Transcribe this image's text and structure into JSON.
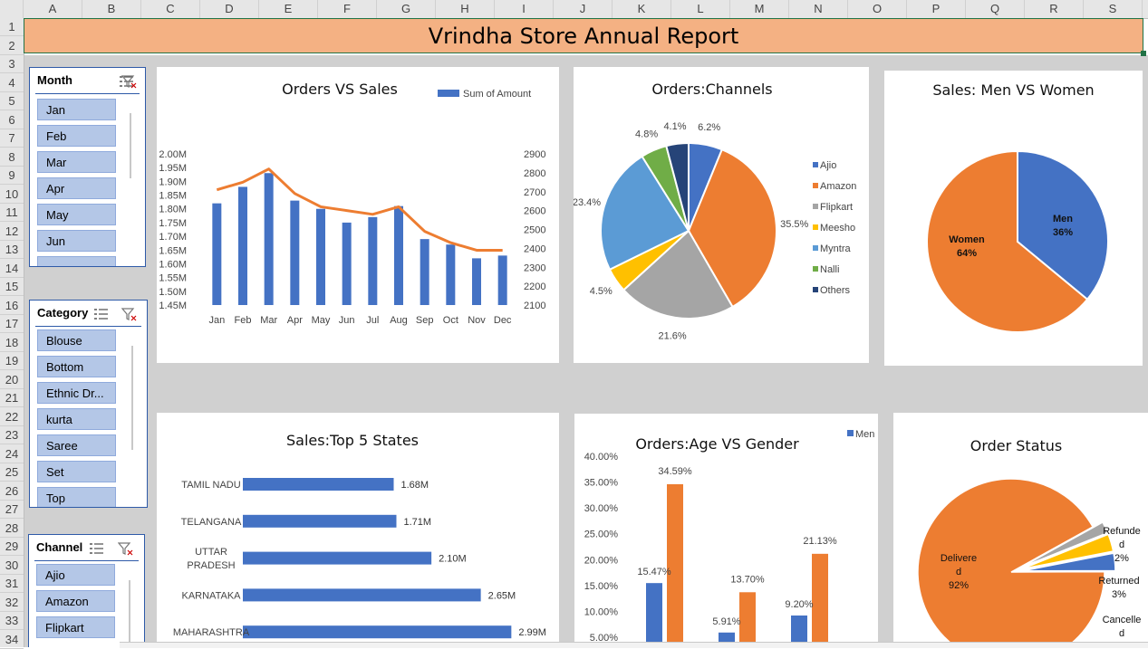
{
  "grid": {
    "columns": [
      "A",
      "B",
      "C",
      "D",
      "E",
      "F",
      "G",
      "H",
      "I",
      "J",
      "K",
      "L",
      "M",
      "N",
      "O",
      "P",
      "Q",
      "R",
      "S"
    ],
    "rows": [
      "1",
      "2",
      "3",
      "4",
      "5",
      "6",
      "7",
      "8",
      "9",
      "10",
      "11",
      "12",
      "13",
      "14",
      "15",
      "16",
      "17",
      "18",
      "19",
      "20",
      "21",
      "22",
      "23",
      "24",
      "25",
      "26",
      "27",
      "28",
      "29",
      "30",
      "31",
      "32",
      "33",
      "34"
    ]
  },
  "report_title": "Vrindha Store Annual Report",
  "slicers": [
    {
      "title": "Month",
      "items": [
        "Jan",
        "Feb",
        "Mar",
        "Apr",
        "May",
        "Jun"
      ]
    },
    {
      "title": "Category",
      "items": [
        "Blouse",
        "Bottom",
        "Ethnic Dr...",
        "kurta",
        "Saree",
        "Set",
        "Top"
      ]
    },
    {
      "title": "Channel",
      "items": [
        "Ajio",
        "Amazon",
        "Flipkart"
      ]
    }
  ],
  "chart_data": [
    {
      "type": "bar",
      "title": "Orders VS Sales",
      "categories": [
        "Jan",
        "Feb",
        "Mar",
        "Apr",
        "May",
        "Jun",
        "Jul",
        "Aug",
        "Sep",
        "Oct",
        "Nov",
        "Dec"
      ],
      "series": [
        {
          "name": "Sum of Amount",
          "type": "bar",
          "axis": "left",
          "color": "#4472c4",
          "values": [
            1.82,
            1.88,
            1.93,
            1.83,
            1.8,
            1.75,
            1.77,
            1.81,
            1.69,
            1.67,
            1.62,
            1.63
          ]
        },
        {
          "type": "line",
          "axis": "right",
          "color": "#ed7d31",
          "values": [
            2710,
            2750,
            2820,
            2690,
            2620,
            2600,
            2580,
            2620,
            2490,
            2430,
            2390,
            2390
          ]
        }
      ],
      "left_ticks": [
        "2.00M",
        "1.95M",
        "1.90M",
        "1.85M",
        "1.80M",
        "1.75M",
        "1.70M",
        "1.65M",
        "1.60M",
        "1.55M",
        "1.50M",
        "1.45M"
      ],
      "right_ticks": [
        "2900",
        "2800",
        "2700",
        "2600",
        "2500",
        "2400",
        "2300",
        "2200",
        "2100"
      ],
      "ylim_left": [
        1.45,
        2.0
      ],
      "ylim_right": [
        2100,
        2900
      ],
      "legend": "top-right"
    },
    {
      "type": "pie",
      "title": "Orders:Channels",
      "slices": [
        {
          "label": "Ajio",
          "value": 6.2,
          "text": "6.2%",
          "color": "#4472c4"
        },
        {
          "label": "Amazon",
          "value": 35.5,
          "text": "35.5%",
          "color": "#ed7d31"
        },
        {
          "label": "Flipkart",
          "value": 21.6,
          "text": "21.6%",
          "color": "#a5a5a5"
        },
        {
          "label": "Meesho",
          "value": 4.5,
          "text": "4.5%",
          "color": "#ffc000"
        },
        {
          "label": "Myntra",
          "value": 23.4,
          "text": "23.4%",
          "color": "#5b9bd5"
        },
        {
          "label": "Nalli",
          "value": 4.8,
          "text": "4.8%",
          "color": "#70ad47"
        },
        {
          "label": "Others",
          "value": 4.1,
          "text": "4.1%",
          "color": "#264478"
        }
      ],
      "legend": "right"
    },
    {
      "type": "pie",
      "title": "Sales: Men VS Women",
      "slices": [
        {
          "label": "Men",
          "value": 36,
          "text": "36%",
          "color": "#4472c4"
        },
        {
          "label": "Women",
          "value": 64,
          "text": "64%",
          "color": "#ed7d31"
        }
      ]
    },
    {
      "type": "bar",
      "orientation": "horizontal",
      "title": "Sales:Top 5 States",
      "categories": [
        "TAMIL NADU",
        "TELANGANA",
        "UTTAR PRADESH",
        "KARNATAKA",
        "MAHARASHTRA"
      ],
      "values": [
        1.68,
        1.71,
        2.1,
        2.65,
        2.99
      ],
      "value_labels": [
        "1.68M",
        "1.71M",
        "2.10M",
        "2.65M",
        "2.99M"
      ],
      "color": "#4472c4"
    },
    {
      "type": "bar",
      "title": "Orders:Age VS Gender",
      "y_ticks": [
        "40.00%",
        "35.00%",
        "30.00%",
        "25.00%",
        "20.00%",
        "15.00%",
        "10.00%",
        "5.00%"
      ],
      "ylim": [
        5,
        40
      ],
      "groups": [
        {
          "men": 15.47,
          "women": 34.59,
          "men_text": "15.47%",
          "women_text": "34.59%"
        },
        {
          "men": 5.91,
          "women": 13.7,
          "men_text": "5.91%",
          "women_text": "13.70%"
        },
        {
          "men": 9.2,
          "women": 21.13,
          "men_text": "9.20%",
          "women_text": "21.13%"
        }
      ],
      "legend_name": "Men",
      "colors": {
        "men": "#4472c4",
        "women": "#ed7d31"
      }
    },
    {
      "type": "pie",
      "title": "Order Status",
      "slices": [
        {
          "label": "Delivered",
          "value": 92,
          "text": "92%",
          "color": "#ed7d31"
        },
        {
          "label": "Refunded",
          "value": 2,
          "text": "2%",
          "color": "#a5a5a5"
        },
        {
          "label": "Returned",
          "value": 3,
          "text": "3%",
          "color": "#4472c4"
        },
        {
          "label": "Cancelled",
          "value": 3,
          "text": "",
          "color": "#ffc000"
        }
      ]
    }
  ]
}
